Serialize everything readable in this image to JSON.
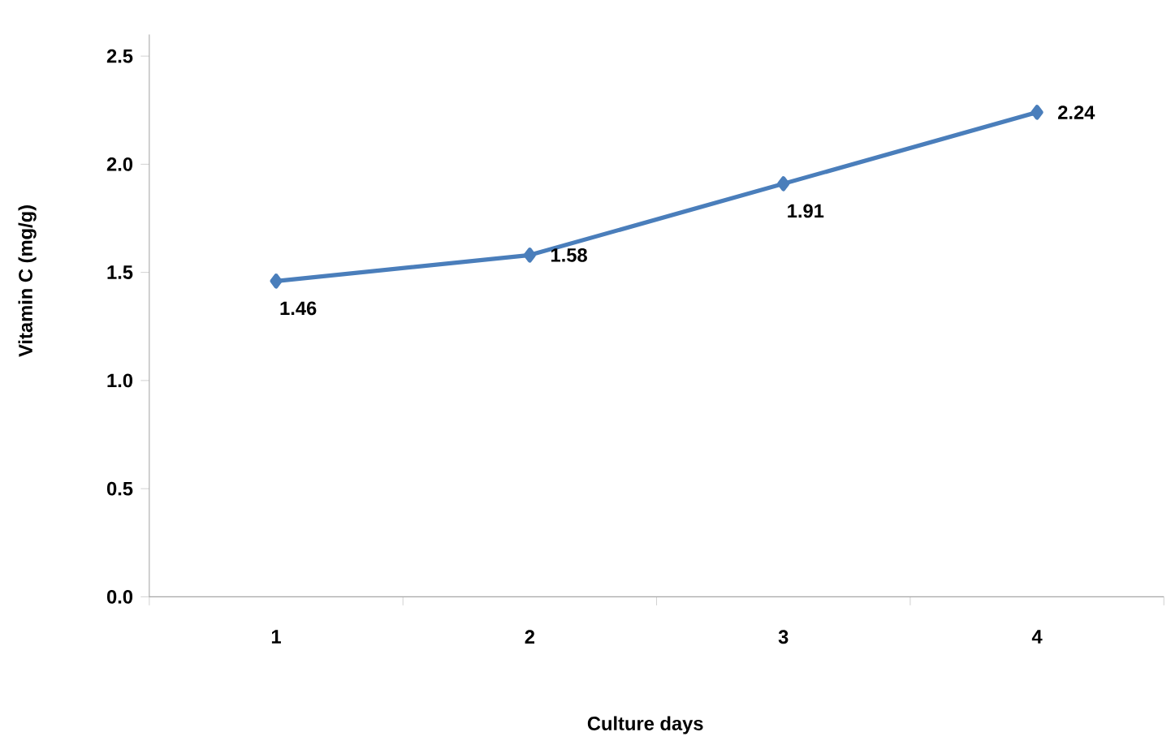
{
  "chart_data": {
    "type": "line",
    "xlabel": "Culture days",
    "ylabel": "Vitamin C (mg/g)",
    "categories": [
      "1",
      "2",
      "3",
      "4"
    ],
    "series": [
      {
        "color": "#4a7ebb",
        "values": [
          1.46,
          1.58,
          1.91,
          2.24
        ]
      }
    ],
    "ylim": [
      0,
      2.6
    ],
    "yticks": [
      {
        "value": 0,
        "label": "0.0"
      },
      {
        "value": 0.5,
        "label": "0.5"
      },
      {
        "value": 1,
        "label": "1.0"
      },
      {
        "value": 1.5,
        "label": "1.5"
      },
      {
        "value": 2,
        "label": "2.0"
      },
      {
        "value": 2.5,
        "label": "2.5"
      }
    ],
    "data_labels": true,
    "marker": "diamond",
    "line_style": "solid"
  }
}
